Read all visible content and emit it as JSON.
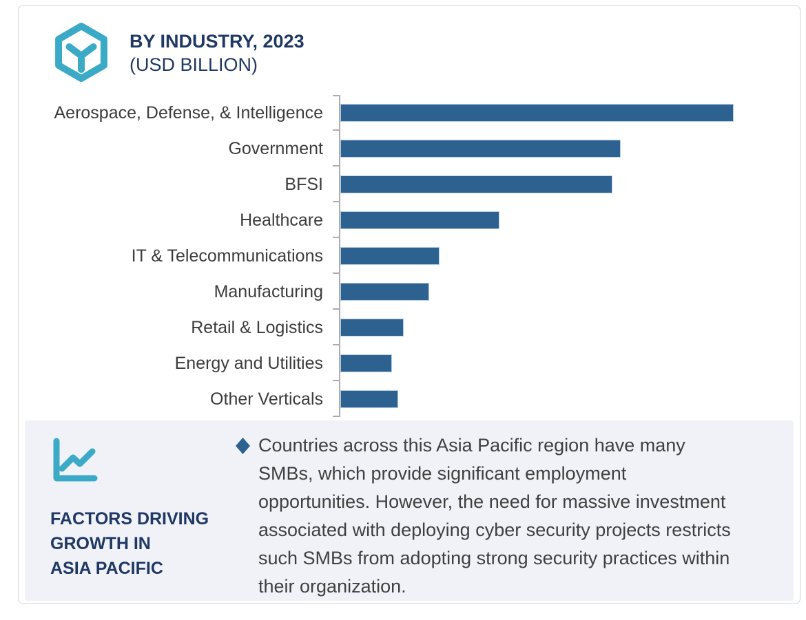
{
  "header": {
    "icon_name": "hexagon-cube-icon",
    "title_line1": "BY INDUSTRY, 2023",
    "title_line2": "(USD BILLION)"
  },
  "chart_data": {
    "type": "bar",
    "orientation": "horizontal",
    "title": "BY INDUSTRY, 2023 (USD BILLION)",
    "value_unit": "USD Billion (no numeric axis shown; values are relative bar lengths with max = 100)",
    "categories": [
      "Aerospace, Defense, & Intelligence",
      "Government",
      "BFSI",
      "Healthcare",
      "IT & Telecommunications",
      "Manufacturing",
      "Retail & Logistics",
      "Energy and Utilities",
      "Other Verticals"
    ],
    "values": [
      100,
      71.3,
      69.2,
      40.5,
      25.2,
      22.6,
      16.1,
      13.1,
      14.7
    ],
    "xlim": [
      0,
      116
    ],
    "grid": false,
    "legend": false,
    "bar_color": "#2D6190",
    "bar_border_color": "#B3CFE5",
    "axis_color": "#ADADAD",
    "label_color": "#3C3C3C"
  },
  "panel": {
    "background_color": "#F0F2F7",
    "icon_name": "line-chart-icon",
    "heading_lines": [
      "FACTORS DRIVING",
      "GROWTH IN",
      "ASIA PACIFIC"
    ],
    "bullet": {
      "icon_name": "diamond-bullet-icon",
      "text_lines": [
        "Countries across this Asia Pacific region have many",
        "SMBs, which provide significant employment",
        "opportunities. However, the need for massive investment",
        "associated with deploying cyber security projects restricts",
        "such SMBs from adopting strong security practices within",
        "their organization."
      ]
    }
  },
  "colors": {
    "accent_teal": "#3BAAC7",
    "navy": "#1F3864",
    "body_text": "#404040"
  }
}
